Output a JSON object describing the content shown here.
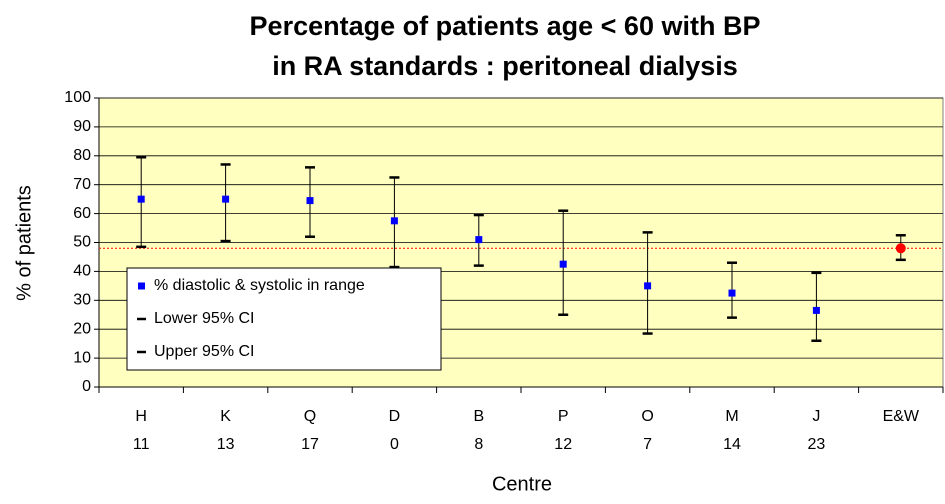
{
  "chart_data": {
    "type": "errorbar",
    "title": [
      "Percentage of patients age < 60 with BP",
      "in RA standards : peritoneal dialysis"
    ],
    "x_label": "Centre",
    "y_label": "% of patients",
    "categories": [
      "H",
      "K",
      "Q",
      "D",
      "B",
      "P",
      "O",
      "M",
      "J",
      "E&W"
    ],
    "sublabels": [
      "11",
      "13",
      "17",
      "0",
      "8",
      "12",
      "7",
      "14",
      "23",
      null
    ],
    "series": [
      {
        "name": "% diastolic & systolic in range",
        "color": "#0000ff",
        "values": [
          65,
          65,
          64.5,
          57.5,
          51,
          42.5,
          35,
          32.5,
          26.5,
          48
        ],
        "point_colors": [
          "#0000ff",
          "#0000ff",
          "#0000ff",
          "#0000ff",
          "#0000ff",
          "#0000ff",
          "#0000ff",
          "#0000ff",
          "#0000ff",
          "#ff0000"
        ]
      },
      {
        "name": "Lower 95% CI",
        "color": "#000000",
        "values": [
          48.5,
          50.5,
          52,
          41.5,
          42,
          25,
          18.5,
          24,
          16,
          44
        ]
      },
      {
        "name": "Upper 95% CI",
        "color": "#000000",
        "values": [
          79.5,
          77,
          76,
          72.5,
          59.5,
          61,
          53.5,
          43,
          39.5,
          52.5
        ]
      }
    ],
    "reference_line": {
      "value": 48,
      "color": "#ff0000"
    },
    "ylim": [
      0,
      100
    ],
    "yticks": [
      0,
      10,
      20,
      30,
      40,
      50,
      60,
      70,
      80,
      90,
      100
    ],
    "grid": true,
    "plot_background": "#ffffc0"
  }
}
